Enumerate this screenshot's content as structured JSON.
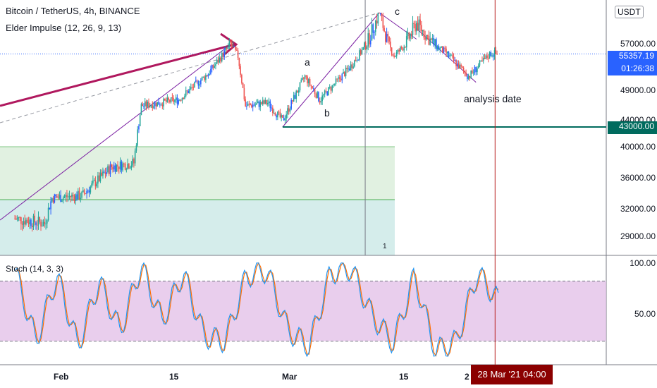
{
  "header": {
    "symbol_line": "Bitcoin / TetherUS, 4h, BINANCE",
    "indicator_line": "Elder Impulse (12, 26, 9, 13)",
    "currency": "USDT"
  },
  "price_axis": {
    "labels": [
      "57000.00",
      "49000.00",
      "44000.00",
      "40000.00",
      "36000.00",
      "32000.00",
      "29000.00"
    ],
    "current_price": "55357.19",
    "countdown": "01:26:38",
    "level_tag": "43000.00"
  },
  "stoch_axis": {
    "labels": [
      "100.00",
      "50.00"
    ]
  },
  "stoch": {
    "label": "Stoch (14, 3, 3)",
    "upper_band": 80,
    "lower_band": 20
  },
  "time_axis": {
    "labels": [
      "Feb",
      "15",
      "Mar",
      "15",
      "2"
    ],
    "cursor_label": "28 Mar '21  04:00"
  },
  "annotations": {
    "a": "a",
    "b": "b",
    "c": "c",
    "analysis": "analysis date",
    "range_count": "1"
  },
  "colors": {
    "up": "#26a69a",
    "down": "#ef5350",
    "neutral": "#2962ff",
    "arrow": "#b0185e",
    "level": "#006b5e",
    "stoch_k": "#2196f3",
    "stoch_d": "#ff6d00"
  },
  "chart_data": {
    "type": "candlestick",
    "symbol": "BTCUSDT",
    "interval": "4h",
    "price_close_points": [
      {
        "x": "Jan 23",
        "y": 31000
      },
      {
        "x": "Jan 27",
        "y": 30500
      },
      {
        "x": "Jan 28",
        "y": 33500
      },
      {
        "x": "Feb 1",
        "y": 33800
      },
      {
        "x": "Feb 5",
        "y": 37500
      },
      {
        "x": "Feb 8",
        "y": 38000
      },
      {
        "x": "Feb 9",
        "y": 46500
      },
      {
        "x": "Feb 14",
        "y": 47500
      },
      {
        "x": "Feb 18",
        "y": 52000
      },
      {
        "x": "Feb 21",
        "y": 57000
      },
      {
        "x": "Feb 22",
        "y": 55000
      },
      {
        "x": "Feb 23",
        "y": 46500
      },
      {
        "x": "Feb 26",
        "y": 47000
      },
      {
        "x": "Feb 28",
        "y": 44000
      },
      {
        "x": "Mar 3",
        "y": 51500
      },
      {
        "x": "Mar 5",
        "y": 47500
      },
      {
        "x": "Mar 9",
        "y": 53000
      },
      {
        "x": "Mar 13",
        "y": 60000
      },
      {
        "x": "Mar 15",
        "y": 55000
      },
      {
        "x": "Mar 18",
        "y": 59000
      },
      {
        "x": "Mar 22",
        "y": 55500
      },
      {
        "x": "Mar 25",
        "y": 51500
      },
      {
        "x": "Mar 28",
        "y": 55500
      },
      {
        "x": "Mar 29",
        "y": 55357
      }
    ],
    "horizontal_level": 43000,
    "last_price": 55357.19,
    "stoch_k_points": [
      90,
      20,
      85,
      15,
      80,
      30,
      95,
      40,
      88,
      25,
      20,
      85,
      90,
      30,
      15,
      88,
      92,
      45,
      18,
      85,
      10,
      20,
      88,
      60
    ]
  }
}
